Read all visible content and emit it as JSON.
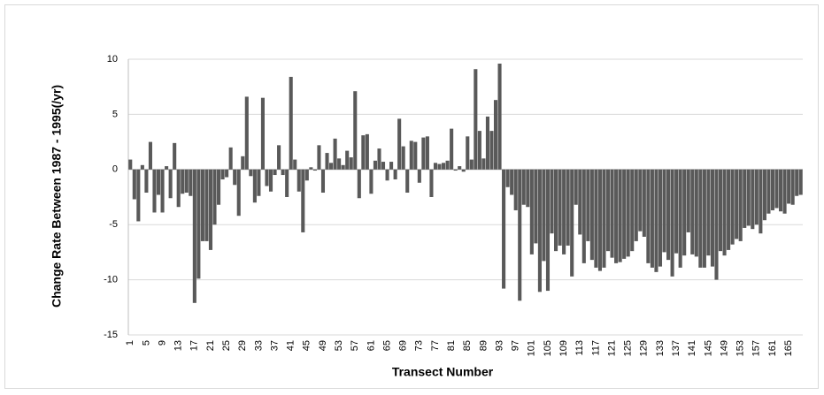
{
  "chart_data": {
    "type": "bar",
    "x_label": "Transect Number",
    "y_label": "Change Rate Between   1987 - 1995(/yr)",
    "color": "#595959",
    "grid": true,
    "ylim": [
      -15,
      10
    ],
    "yticks": [
      10,
      5,
      0,
      -5,
      -10,
      -15
    ],
    "categories": [
      "1",
      null,
      null,
      null,
      "5",
      null,
      null,
      null,
      "9",
      null,
      null,
      null,
      "13",
      null,
      null,
      null,
      "17",
      null,
      null,
      null,
      "21",
      null,
      null,
      null,
      "25",
      null,
      null,
      null,
      "29",
      null,
      null,
      null,
      "33",
      null,
      null,
      null,
      "37",
      null,
      null,
      null,
      "41",
      null,
      null,
      null,
      "45",
      null,
      null,
      null,
      "49",
      null,
      null,
      null,
      "53",
      null,
      null,
      null,
      "57",
      null,
      null,
      null,
      "61",
      null,
      null,
      null,
      "65",
      null,
      null,
      null,
      "69",
      null,
      null,
      null,
      "73",
      null,
      null,
      null,
      "77",
      null,
      null,
      null,
      "81",
      null,
      null,
      null,
      "85",
      null,
      null,
      null,
      "89",
      null,
      null,
      null,
      "93",
      null,
      null,
      null,
      "97",
      null,
      null,
      null,
      "101",
      null,
      null,
      null,
      "105",
      null,
      null,
      null,
      "109",
      null,
      null,
      null,
      "113",
      null,
      null,
      null,
      "117",
      null,
      null,
      null,
      "121",
      null,
      null,
      null,
      "125",
      null,
      null,
      null,
      "129",
      null,
      null,
      null,
      "133",
      null,
      null,
      null,
      "137",
      null,
      null,
      null,
      "141",
      null,
      null,
      null,
      "145",
      null,
      null,
      null,
      "149",
      null,
      null,
      null,
      "153",
      null,
      null,
      null,
      "157",
      null,
      null,
      null,
      "161",
      null,
      null,
      null,
      "165",
      null,
      null,
      null
    ],
    "values": [
      0.9,
      -2.7,
      -4.7,
      0.4,
      -2.1,
      2.5,
      -3.9,
      -2.3,
      -3.9,
      0.3,
      -2.6,
      2.4,
      -3.4,
      -2.2,
      -2.1,
      -2.4,
      -12.1,
      -9.9,
      -6.5,
      -6.5,
      -7.3,
      -5.0,
      -3.2,
      -0.9,
      -0.7,
      2.0,
      -1.4,
      -4.2,
      1.2,
      6.6,
      -0.6,
      -3.0,
      -2.4,
      6.5,
      -1.5,
      -2.0,
      -0.5,
      2.2,
      -0.5,
      -2.5,
      8.4,
      0.9,
      -2.0,
      -5.7,
      -1.0,
      0.2,
      -0.1,
      2.2,
      -2.1,
      1.5,
      0.6,
      2.8,
      1.0,
      0.4,
      1.7,
      1.1,
      7.1,
      -2.6,
      3.1,
      3.2,
      -2.2,
      0.8,
      1.9,
      0.7,
      -1.0,
      0.7,
      -0.9,
      4.6,
      2.1,
      -2.1,
      2.6,
      2.5,
      -1.2,
      2.9,
      3.0,
      -2.5,
      0.6,
      0.5,
      0.6,
      0.8,
      3.7,
      -0.1,
      0.3,
      -0.2,
      3.0,
      0.9,
      9.1,
      3.5,
      1.0,
      4.8,
      3.5,
      6.3,
      9.6,
      -10.8,
      -1.6,
      -2.3,
      -3.7,
      -11.9,
      -3.2,
      -3.4,
      -7.7,
      -6.7,
      -11.1,
      -8.3,
      -11.0,
      -5.8,
      -7.4,
      -6.9,
      -7.7,
      -6.9,
      -9.7,
      -3.2,
      -5.9,
      -8.5,
      -6.5,
      -8.2,
      -8.9,
      -9.2,
      -8.9,
      -7.4,
      -8.0,
      -8.5,
      -8.4,
      -8.1,
      -7.9,
      -7.4,
      -6.5,
      -5.6,
      -6.1,
      -8.5,
      -8.9,
      -9.3,
      -8.8,
      -7.5,
      -8.2,
      -9.7,
      -7.6,
      -8.9,
      -7.8,
      -5.7,
      -7.7,
      -7.9,
      -8.9,
      -8.9,
      -7.8,
      -8.8,
      -10.0,
      -7.4,
      -7.8,
      -7.3,
      -6.8,
      -6.3,
      -6.5,
      -5.3,
      -5.1,
      -5.4,
      -5.0,
      -5.8,
      -4.6,
      -4.0,
      -3.7,
      -3.5,
      -3.8,
      -4.0,
      -3.1,
      -3.2,
      -2.4,
      -2.3
    ]
  }
}
